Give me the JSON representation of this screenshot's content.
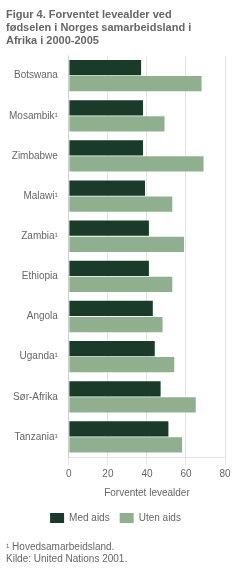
{
  "chart_data": {
    "type": "bar",
    "orientation": "horizontal",
    "title": "Figur 4. Forventet levealder ved\nfødselen i Norges samarbeidsland i\nAfrika i 2000-2005",
    "xlabel": "Forventet levealder",
    "categories": [
      "Botswana",
      "Mosambik¹",
      "Zimbabwe",
      "Malawi¹",
      "Zambia¹",
      "Ethiopia",
      "Angola",
      "Uganda¹",
      "Sør-Afrika",
      "Tanzania¹"
    ],
    "series": [
      {
        "name": "Med aids",
        "color": "#1a3a2a",
        "values": [
          37,
          38,
          38,
          39,
          41,
          41,
          43,
          44,
          47,
          51
        ]
      },
      {
        "name": "Uten aids",
        "color": "#8faf8f",
        "values": [
          68,
          49,
          69,
          53,
          59,
          53,
          48,
          54,
          65,
          58
        ]
      }
    ],
    "xlim": [
      0,
      80
    ],
    "xticks": [
      0,
      20,
      40,
      60,
      80
    ],
    "grid": true,
    "legend": "bottom",
    "annotations": [
      "¹ Hovedsamarbeidsland.",
      "Kilde: United Nations 2001."
    ]
  }
}
